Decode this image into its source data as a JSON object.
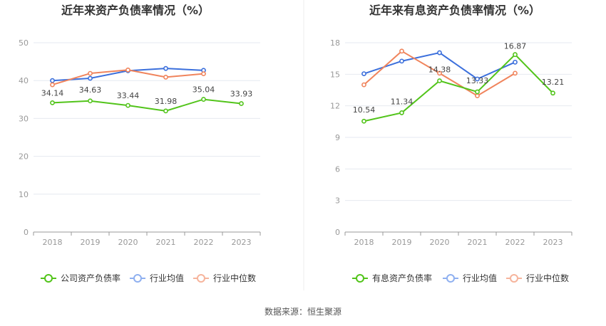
{
  "source_text": "数据来源：恒生聚源",
  "chart_data": [
    {
      "type": "line",
      "title": "近年来资产负债率情况（%）",
      "categories": [
        "2018",
        "2019",
        "2020",
        "2021",
        "2022",
        "2023"
      ],
      "ylim": [
        0,
        50
      ],
      "yticks": [
        0,
        10,
        20,
        30,
        40,
        50
      ],
      "grid": true,
      "legend_position": "bottom",
      "series": [
        {
          "name": "公司资产负债率",
          "color": "#52c41a",
          "values": [
            34.14,
            34.63,
            33.44,
            31.98,
            35.04,
            33.93
          ],
          "labels": [
            "34.14",
            "34.63",
            "33.44",
            "31.98",
            "35.04",
            "33.93"
          ]
        },
        {
          "name": "行业均值",
          "color": "#3b6fdc",
          "values": [
            40.0,
            40.6,
            42.6,
            43.2,
            42.7,
            null
          ],
          "labels": []
        },
        {
          "name": "行业中位数",
          "color": "#f0845c",
          "values": [
            38.9,
            41.9,
            42.8,
            40.9,
            41.8,
            null
          ],
          "labels": []
        }
      ]
    },
    {
      "type": "line",
      "title": "近年来有息资产负债率情况（%）",
      "categories": [
        "2018",
        "2019",
        "2020",
        "2021",
        "2022",
        "2023"
      ],
      "ylim": [
        0,
        18
      ],
      "yticks": [
        0,
        3,
        6,
        9,
        12,
        15,
        18
      ],
      "grid": true,
      "legend_position": "bottom",
      "series": [
        {
          "name": "有息资产负债率",
          "color": "#52c41a",
          "values": [
            10.54,
            11.34,
            14.38,
            13.33,
            16.87,
            13.21
          ],
          "labels": [
            "10.54",
            "11.34",
            "14.38",
            "13.33",
            "16.87",
            "13.21"
          ]
        },
        {
          "name": "行业均值",
          "color": "#3b6fdc",
          "values": [
            15.05,
            16.25,
            17.05,
            14.55,
            16.15,
            null
          ],
          "labels": []
        },
        {
          "name": "行业中位数",
          "color": "#f0845c",
          "values": [
            14.0,
            17.2,
            15.1,
            12.95,
            15.1,
            null
          ],
          "labels": []
        }
      ]
    }
  ]
}
